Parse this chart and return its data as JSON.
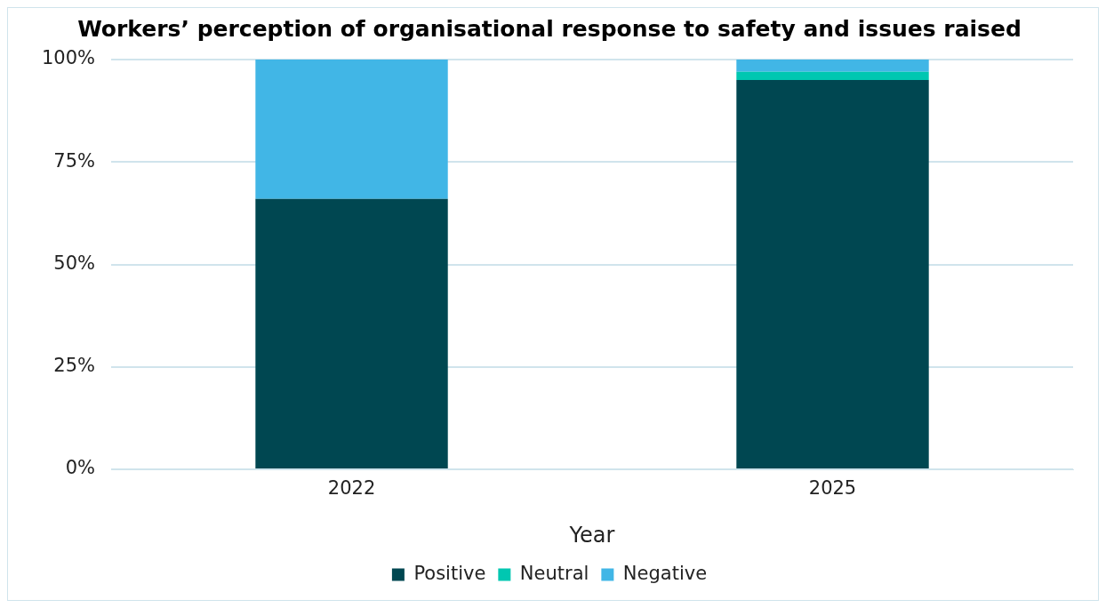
{
  "chart_data": {
    "type": "bar",
    "title": "Workers’ perception of organisational response to safety and issues raised",
    "xlabel": "Year",
    "categories": [
      "2022",
      "2025"
    ],
    "stacked": true,
    "series": [
      {
        "name": "Positive",
        "color": "#004751",
        "values": [
          66,
          95
        ]
      },
      {
        "name": "Neutral",
        "color": "#00c7b1",
        "values": [
          0,
          2
        ]
      },
      {
        "name": "Negative",
        "color": "#41b6e6",
        "values": [
          34,
          3
        ]
      }
    ],
    "ylim": [
      0,
      100
    ],
    "yticks": [
      {
        "value": 0,
        "label": "0%"
      },
      {
        "value": 25,
        "label": "25%"
      },
      {
        "value": 50,
        "label": "50%"
      },
      {
        "value": 75,
        "label": "75%"
      },
      {
        "value": 100,
        "label": "100%"
      }
    ],
    "grid": "y",
    "legend": "bottom"
  }
}
